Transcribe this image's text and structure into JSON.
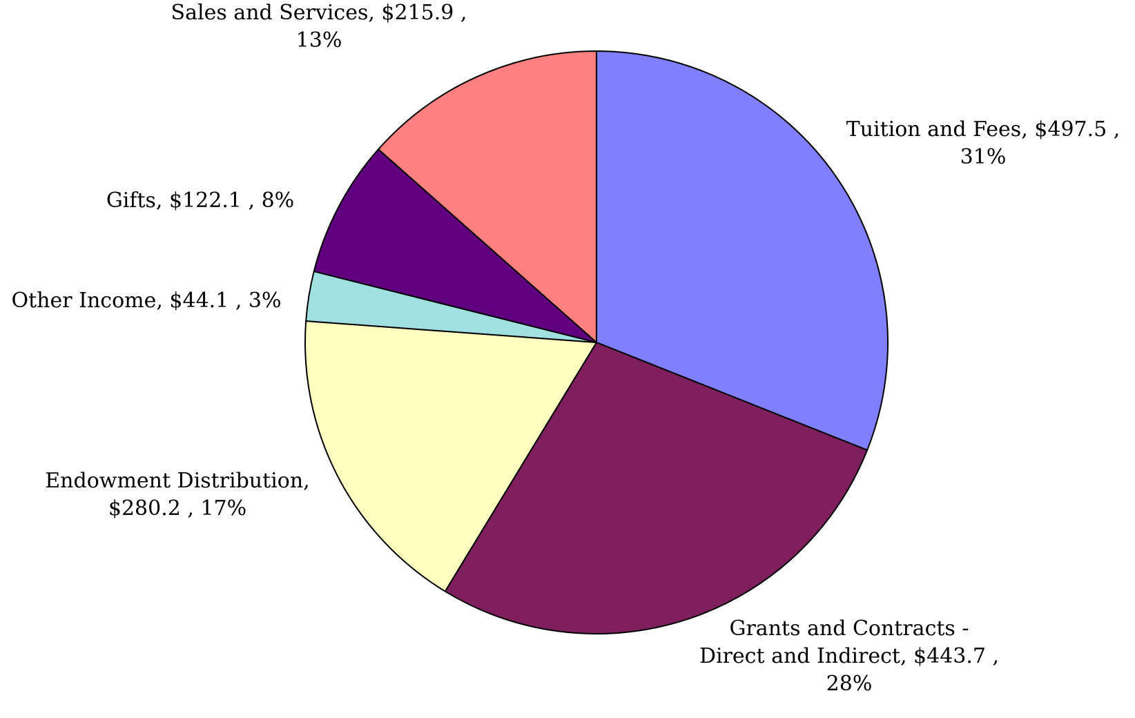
{
  "chart_data": {
    "type": "pie",
    "title": "",
    "slices": [
      {
        "category": "Tuition and Fees",
        "value": 497.5,
        "percent": 31,
        "color": "#8080ff",
        "label_lines": [
          "Tuition and Fees, $497.5 ,",
          "31%"
        ]
      },
      {
        "category": "Grants and Contracts - Direct and Indirect",
        "value": 443.7,
        "percent": 28,
        "color": "#7f1f5e",
        "label_lines": [
          "Grants and Contracts -",
          "Direct and Indirect, $443.7 ,",
          "28%"
        ]
      },
      {
        "category": "Endowment Distribution",
        "value": 280.2,
        "percent": 17,
        "color": "#ffffc0",
        "label_lines": [
          "Endowment Distribution,",
          "$280.2 , 17%"
        ]
      },
      {
        "category": "Other Income",
        "value": 44.1,
        "percent": 3,
        "color": "#a0e0e0",
        "label_lines": [
          "Other Income, $44.1 , 3%"
        ]
      },
      {
        "category": "Gifts",
        "value": 122.1,
        "percent": 8,
        "color": "#600080",
        "label_lines": [
          "Gifts, $122.1 , 8%"
        ]
      },
      {
        "category": "Sales and Services",
        "value": 215.9,
        "percent": 13,
        "color": "#ff8080",
        "label_lines": [
          "Sales and Services, $215.9 ,",
          "13%"
        ]
      }
    ],
    "start_angle": "12 o'clock",
    "direction": "clockwise",
    "legend": "none"
  }
}
